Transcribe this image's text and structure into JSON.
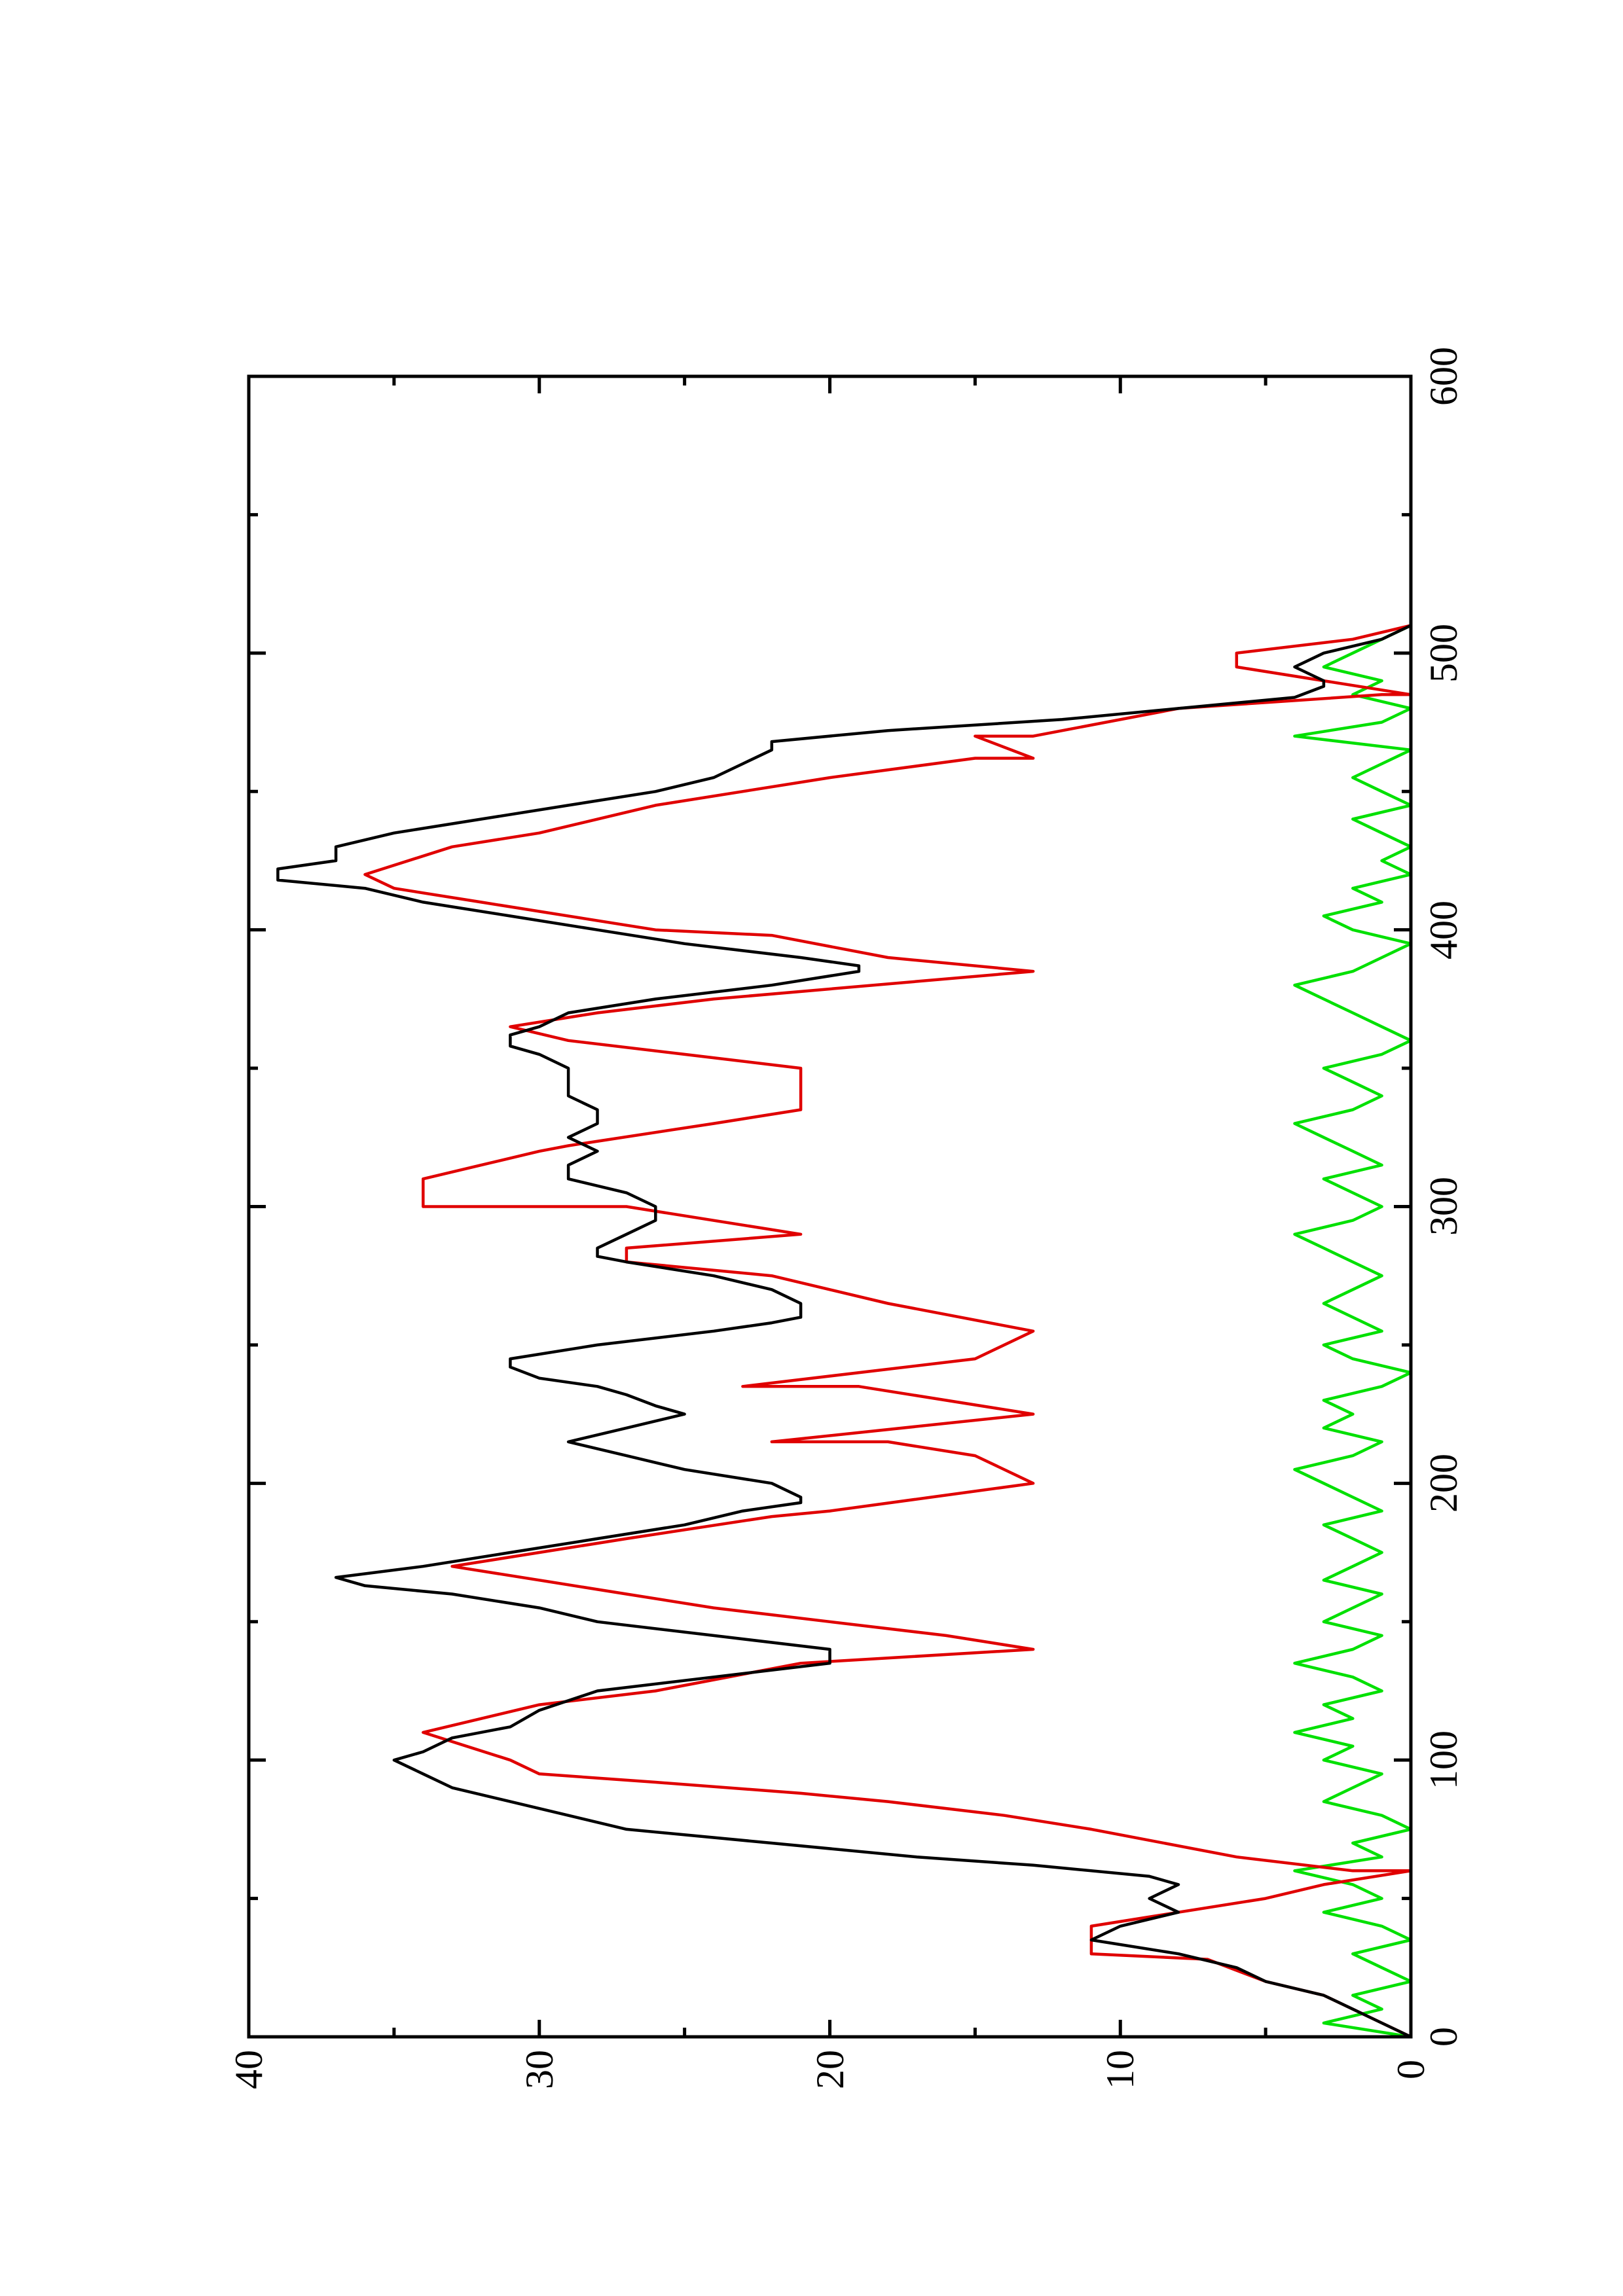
{
  "chart_data": {
    "type": "line",
    "orientation": "rotated-90-clockwise",
    "title": "",
    "xlabel": "",
    "ylabel": "",
    "xlim": [
      0,
      600
    ],
    "ylim": [
      0,
      40
    ],
    "x_ticks": [
      0,
      100,
      200,
      300,
      400,
      500,
      600
    ],
    "x_minor_ticks": [
      50,
      150,
      250,
      350,
      450,
      550
    ],
    "y_ticks": [
      0,
      10,
      20,
      30,
      40
    ],
    "y_minor_ticks": [
      5,
      15,
      25,
      35
    ],
    "x_tick_labels": [
      "0",
      "100",
      "200",
      "300",
      "400",
      "500",
      "600"
    ],
    "y_tick_labels": [
      "0",
      "10",
      "20",
      "30",
      "40"
    ],
    "grid": false,
    "legend": "none",
    "series": [
      {
        "color": "#000000",
        "x": [
          0,
          5,
          10,
          15,
          20,
          25,
          30,
          35,
          40,
          45,
          50,
          55,
          58,
          62,
          65,
          70,
          75,
          80,
          85,
          90,
          95,
          100,
          103,
          108,
          112,
          118,
          125,
          130,
          135,
          140,
          145,
          150,
          155,
          160,
          163,
          166,
          170,
          175,
          180,
          185,
          190,
          193,
          195,
          200,
          205,
          210,
          215,
          220,
          225,
          228,
          232,
          235,
          238,
          242,
          245,
          250,
          255,
          258,
          260,
          265,
          270,
          275,
          280,
          282,
          285,
          290,
          295,
          300,
          305,
          310,
          315,
          320,
          325,
          330,
          335,
          340,
          345,
          350,
          355,
          358,
          362,
          365,
          370,
          375,
          380,
          385,
          387,
          390,
          395,
          400,
          405,
          410,
          415,
          418,
          422,
          425,
          430,
          435,
          440,
          445,
          450,
          455,
          460,
          465,
          468,
          472,
          476,
          480,
          484,
          488,
          490,
          495,
          500,
          505,
          510
        ],
        "values": [
          0,
          1,
          2,
          3,
          5,
          6,
          8,
          11,
          10,
          8,
          9,
          8,
          9,
          13,
          17,
          22,
          27,
          29,
          31,
          33,
          34,
          35,
          34,
          33,
          31,
          30,
          28,
          24,
          20,
          20,
          24,
          28,
          30,
          33,
          36,
          37,
          34,
          31,
          28,
          25,
          23,
          21,
          21,
          22,
          25,
          27,
          29,
          27,
          25,
          26,
          27,
          28,
          30,
          31,
          31,
          28,
          24,
          22,
          21,
          21,
          22,
          24,
          27,
          28,
          28,
          27,
          26,
          26,
          27,
          29,
          29,
          28,
          29,
          28,
          28,
          29,
          29,
          29,
          30,
          31,
          31,
          30,
          29,
          26,
          22,
          19,
          19,
          21,
          25,
          28,
          31,
          34,
          36,
          39,
          39,
          37,
          37,
          35,
          32,
          29,
          26,
          24,
          23,
          22,
          22,
          18,
          12,
          8,
          4,
          3,
          3,
          4,
          3,
          1,
          0
        ]
      },
      {
        "color": "#e00000",
        "x": [
          0,
          15,
          15,
          20,
          28,
          30,
          38,
          40,
          45,
          50,
          55,
          60,
          60,
          65,
          75,
          80,
          85,
          88,
          92,
          95,
          100,
          110,
          120,
          125,
          135,
          140,
          145,
          150,
          155,
          160,
          165,
          170,
          175,
          180,
          188,
          190,
          200,
          210,
          215,
          215,
          225,
          225,
          235,
          235,
          245,
          245,
          255,
          265,
          275,
          280,
          285,
          290,
          290,
          300,
          300,
          310,
          320,
          322,
          330,
          335,
          340,
          350,
          355,
          360,
          365,
          370,
          375,
          385,
          390,
          398,
          400,
          410,
          415,
          420,
          430,
          435,
          445,
          455,
          462,
          462,
          470,
          470,
          480,
          485,
          485,
          495,
          500,
          505,
          510
        ],
        "values": [
          0,
          3,
          3,
          5,
          7,
          11,
          11,
          11,
          8,
          5,
          3,
          0,
          2,
          6,
          11,
          14,
          18,
          21,
          26,
          30,
          31,
          34,
          30,
          26,
          21,
          13,
          16,
          20,
          24,
          27,
          30,
          33,
          30,
          27,
          22,
          20,
          13,
          15,
          18,
          22,
          13,
          13,
          19,
          23,
          15,
          15,
          13,
          18,
          22,
          27,
          27,
          21,
          21,
          27,
          34,
          34,
          30,
          29,
          24,
          21,
          21,
          21,
          25,
          29,
          31,
          28,
          24,
          13,
          18,
          22,
          26,
          32,
          35,
          36,
          33,
          30,
          26,
          20,
          15,
          13,
          15,
          13,
          8,
          1,
          0,
          6,
          6,
          2,
          0
        ]
      },
      {
        "color": "#00e000",
        "x": [
          0,
          5,
          10,
          15,
          20,
          25,
          30,
          35,
          40,
          45,
          50,
          55,
          60,
          65,
          70,
          75,
          80,
          85,
          90,
          95,
          100,
          105,
          110,
          115,
          120,
          125,
          130,
          135,
          140,
          145,
          150,
          155,
          160,
          165,
          170,
          175,
          180,
          185,
          190,
          195,
          200,
          205,
          210,
          215,
          220,
          225,
          230,
          235,
          240,
          245,
          250,
          255,
          260,
          265,
          270,
          275,
          280,
          285,
          290,
          295,
          300,
          305,
          310,
          315,
          320,
          325,
          330,
          335,
          340,
          345,
          350,
          355,
          360,
          365,
          370,
          375,
          380,
          385,
          390,
          395,
          400,
          405,
          410,
          415,
          420,
          425,
          430,
          435,
          440,
          445,
          450,
          455,
          460,
          465,
          470,
          475,
          480,
          485,
          490,
          495,
          500,
          505,
          510
        ],
        "values": [
          0,
          3,
          1,
          2,
          0,
          1,
          2,
          0,
          1,
          3,
          1,
          2,
          4,
          1,
          2,
          0,
          1,
          3,
          2,
          1,
          3,
          2,
          4,
          2,
          3,
          1,
          2,
          4,
          2,
          1,
          3,
          2,
          1,
          3,
          2,
          1,
          2,
          3,
          1,
          2,
          3,
          4,
          2,
          1,
          3,
          2,
          3,
          1,
          0,
          2,
          3,
          1,
          2,
          3,
          2,
          1,
          2,
          3,
          4,
          2,
          1,
          2,
          3,
          1,
          2,
          3,
          4,
          2,
          1,
          2,
          3,
          1,
          0,
          1,
          2,
          3,
          4,
          2,
          1,
          0,
          2,
          3,
          1,
          2,
          0,
          1,
          0,
          1,
          2,
          0,
          1,
          2,
          1,
          0,
          4,
          1,
          0,
          2,
          1,
          3,
          2,
          1,
          0
        ]
      }
    ]
  }
}
